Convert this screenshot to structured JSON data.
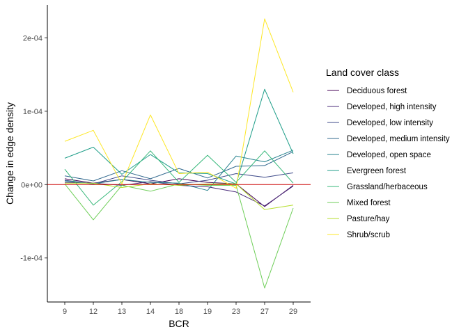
{
  "chart_data": {
    "type": "line",
    "xlabel": "BCR",
    "ylabel": "Change in edge density",
    "categories": [
      "9",
      "12",
      "13",
      "14",
      "18",
      "19",
      "23",
      "27",
      "29"
    ],
    "y_ticks": [
      {
        "value": -0.0001,
        "label": "-1e-04"
      },
      {
        "value": 0,
        "label": "0e+00"
      },
      {
        "value": 0.0001,
        "label": "1e-04"
      },
      {
        "value": 0.0002,
        "label": "2e-04"
      }
    ],
    "ylim": [
      -0.00016,
      0.000245
    ],
    "reference_line": {
      "value": 0,
      "color": "#cc0000"
    },
    "grid": false,
    "legend": {
      "title": "Land cover class",
      "position": "right"
    },
    "series": [
      {
        "name": "Deciduous forest",
        "color": "#440154",
        "values": [
          8e-06,
          2e-06,
          7e-06,
          1e-06,
          8e-06,
          3e-06,
          1e-06,
          -3e-05,
          -1e-06
        ]
      },
      {
        "name": "Developed, high intensity",
        "color": "#482878",
        "values": [
          3e-06,
          2e-06,
          -1e-06,
          4e-06,
          -1e-06,
          -3e-06,
          -1e-05,
          -2.9e-05,
          -2e-06
        ]
      },
      {
        "name": "Developed, low intensity",
        "color": "#3e4a89",
        "values": [
          6e-06,
          1e-06,
          1.2e-05,
          6e-06,
          1e-06,
          6e-06,
          1.5e-05,
          1e-05,
          1.6e-05
        ]
      },
      {
        "name": "Developed, medium intensity",
        "color": "#31688e",
        "values": [
          1.2e-05,
          5e-06,
          1.9e-05,
          8e-06,
          2.2e-05,
          9e-06,
          2.5e-05,
          2.6e-05,
          4.5e-05
        ]
      },
      {
        "name": "Developed, open space",
        "color": "#26828e",
        "values": [
          5e-06,
          1e-06,
          7e-06,
          3e-06,
          2e-06,
          -8e-06,
          3.9e-05,
          3.1e-05,
          4.7e-05
        ]
      },
      {
        "name": "Evergreen forest",
        "color": "#1f9e89",
        "values": [
          3.6e-05,
          5.1e-05,
          1.4e-05,
          4.1e-05,
          1.6e-05,
          1.5e-05,
          1e-06,
          0.00013,
          4.2e-05
        ]
      },
      {
        "name": "Grassland/herbaceous",
        "color": "#35b779",
        "values": [
          2.1e-05,
          -2.8e-05,
          4e-06,
          4.6e-05,
          3e-06,
          4e-05,
          3e-06,
          4.6e-05,
          2e-06
        ]
      },
      {
        "name": "Mixed forest",
        "color": "#6ece58",
        "values": [
          1e-06,
          -4.8e-05,
          -1e-06,
          -9e-06,
          1e-06,
          -1e-06,
          -1e-06,
          -0.000141,
          -3.2e-05
        ]
      },
      {
        "name": "Pasture/hay",
        "color": "#b5de2b",
        "values": [
          2e-06,
          2e-06,
          -4e-06,
          1e-06,
          -1e-06,
          1e-06,
          1e-06,
          -3.4e-05,
          -2.8e-05
        ]
      },
      {
        "name": "Shrub/scrub",
        "color": "#fde725",
        "values": [
          5.9e-05,
          7.4e-05,
          1e-06,
          9.5e-05,
          1.5e-05,
          1.7e-05,
          -5e-06,
          0.000226,
          0.000126
        ]
      }
    ]
  }
}
